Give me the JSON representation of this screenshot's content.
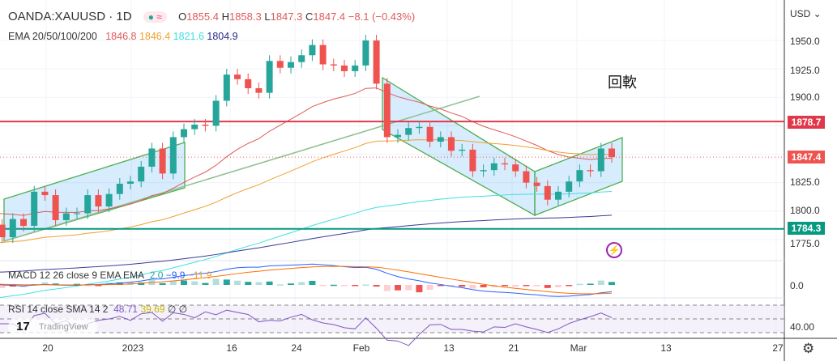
{
  "header": {
    "symbol": "OANDA:XAUUSD · 1D",
    "open_label": "O",
    "open": "1855.4",
    "high_label": "H",
    "high": "1858.3",
    "low_label": "L",
    "low": "1847.3",
    "close_label": "C",
    "close": "1847.4",
    "change": "−8.1 (−0.43%)"
  },
  "ema": {
    "label": "EMA 20/50/100/200",
    "v20": "1846.8",
    "v50": "1846.4",
    "v100": "1821.6",
    "v200": "1804.9"
  },
  "macd": {
    "label": "MACD 12 26 close 9 EMA EMA",
    "hist": "2.0",
    "macd": "−9.9",
    "signal": "−11.9"
  },
  "rsi": {
    "label": "RSI 14 close SMA 14 2",
    "rsi": "48.71",
    "sma": "39.69",
    "v3": "∅",
    "v4": "∅"
  },
  "watermark": "TradingView",
  "annotation": "回軟",
  "price_axis": {
    "currency": "USD ⌄",
    "ticks": [
      "1950.0",
      "1925.0",
      "1900.0",
      "1825.0",
      "1800.0",
      "1775.0"
    ],
    "macd_tick": "0.0",
    "rsi_tick": "40.00"
  },
  "price_tags": {
    "resistance": "1878.7",
    "last": "1847.4",
    "support": "1784.3"
  },
  "time_axis": [
    "20",
    "2023",
    "16",
    "24",
    "Feb",
    "13",
    "21",
    "Mar",
    "13",
    "27"
  ],
  "colors": {
    "up": "#26a69a",
    "down": "#ef5350",
    "resistance": "#e0384a",
    "support": "#089981",
    "ema20": "#e05a5a",
    "ema50": "#f0a030",
    "ema100": "#40e0e0",
    "ema200": "#3a3a9a",
    "channel": "#4caf50"
  },
  "chart_data": {
    "type": "candlestick",
    "dates": [
      "Dec13",
      "Dec14",
      "Dec15",
      "Dec16",
      "Dec19",
      "Dec20",
      "Dec21",
      "Dec22",
      "Dec23",
      "Dec26",
      "Dec27",
      "Dec28",
      "Dec29",
      "Dec30",
      "Jan2",
      "Jan3",
      "Jan4",
      "Jan5",
      "Jan6",
      "Jan9",
      "Jan10",
      "Jan11",
      "Jan12",
      "Jan13",
      "Jan16",
      "Jan17",
      "Jan18",
      "Jan19",
      "Jan20",
      "Jan23",
      "Jan24",
      "Jan25",
      "Jan26",
      "Jan27",
      "Jan30",
      "Jan31",
      "Feb1",
      "Feb2",
      "Feb3",
      "Feb6",
      "Feb7",
      "Feb8",
      "Feb9",
      "Feb10",
      "Feb13",
      "Feb14",
      "Feb15",
      "Feb16",
      "Feb17",
      "Feb20",
      "Feb21",
      "Feb22",
      "Feb23",
      "Feb24",
      "Feb27",
      "Feb28",
      "Mar1",
      "Mar2",
      "Mar3",
      "Mar6"
    ],
    "close": [
      1810,
      1788,
      1777,
      1793,
      1787,
      1817,
      1814,
      1792,
      1798,
      1798,
      1814,
      1804,
      1815,
      1824,
      1826,
      1839,
      1855,
      1833,
      1865,
      1872,
      1876,
      1875,
      1897,
      1920,
      1916,
      1908,
      1904,
      1932,
      1926,
      1931,
      1937,
      1946,
      1929,
      1928,
      1923,
      1928,
      1950,
      1912,
      1865,
      1867,
      1873,
      1874,
      1861,
      1865,
      1853,
      1854,
      1835,
      1836,
      1842,
      1841,
      1835,
      1825,
      1822,
      1810,
      1817,
      1826,
      1836,
      1835,
      1855,
      1847.4
    ],
    "ylim": [
      1760,
      1965
    ]
  }
}
